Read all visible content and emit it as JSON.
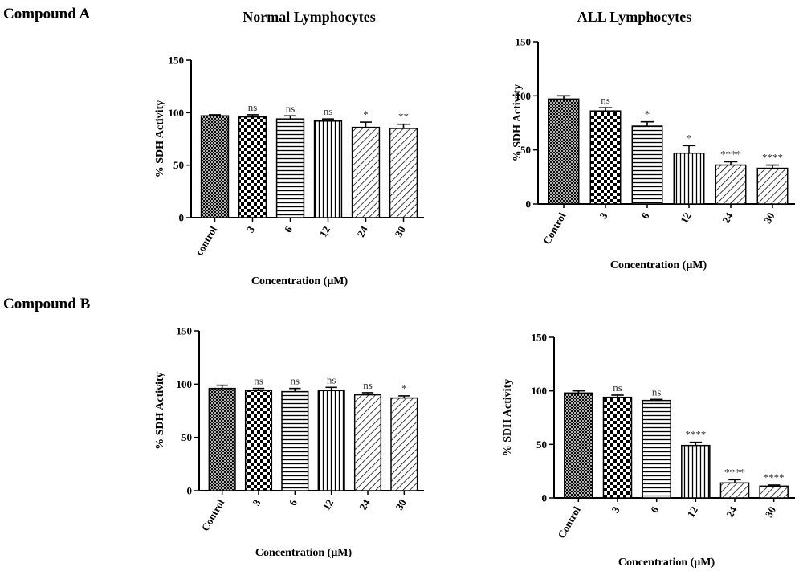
{
  "headings": {
    "compound_a": "Compound A",
    "compound_b": "Compound B"
  },
  "colors": {
    "ink": "#000000",
    "background": "#ffffff"
  },
  "chart_data": [
    {
      "type": "bar",
      "title": "Normal Lymphocytes",
      "group": "Compound A",
      "xlabel": "Concentration (μM)",
      "ylabel": "% SDH Activity",
      "ylim": [
        0,
        150
      ],
      "yticks": [
        0,
        50,
        100,
        150
      ],
      "categories": [
        "control",
        "3",
        "6",
        "12",
        "24",
        "30"
      ],
      "values": [
        97,
        96,
        94,
        92,
        86,
        85
      ],
      "errors": [
        1,
        2,
        3,
        2,
        5,
        4
      ],
      "significance": [
        "",
        "ns",
        "ns",
        "ns",
        "*",
        "**"
      ],
      "patterns": [
        "crosshatch",
        "checker",
        "horizontal",
        "vertical",
        "diagonal",
        "diagonal"
      ]
    },
    {
      "type": "bar",
      "title": "ALL Lymphocytes",
      "group": "Compound A",
      "xlabel": "Concentration (μM)",
      "ylabel": "% SDH Activity",
      "ylim": [
        0,
        150
      ],
      "yticks": [
        0,
        50,
        100,
        150
      ],
      "categories": [
        "Control",
        "3",
        "6",
        "12",
        "24",
        "30"
      ],
      "values": [
        97,
        86,
        72,
        47,
        36,
        33
      ],
      "errors": [
        3,
        3,
        4,
        7,
        3,
        3
      ],
      "significance": [
        "",
        "ns",
        "*",
        "*",
        "****",
        "****"
      ],
      "patterns": [
        "crosshatch",
        "checker",
        "horizontal",
        "vertical",
        "diagonal",
        "diagonal"
      ]
    },
    {
      "type": "bar",
      "title": "",
      "group": "Compound B",
      "xlabel": "Concentration (μM)",
      "ylabel": "% SDH Activity",
      "ylim": [
        0,
        150
      ],
      "yticks": [
        0,
        50,
        100,
        150
      ],
      "categories": [
        "Control",
        "3",
        "6",
        "12",
        "24",
        "30"
      ],
      "values": [
        96,
        94,
        93,
        94,
        90,
        87
      ],
      "errors": [
        3,
        2,
        3,
        3,
        2,
        2
      ],
      "significance": [
        "",
        "ns",
        "ns",
        "ns",
        "ns",
        "*"
      ],
      "patterns": [
        "crosshatch",
        "checker",
        "horizontal",
        "vertical",
        "diagonal",
        "diagonal"
      ]
    },
    {
      "type": "bar",
      "title": "",
      "group": "Compound B",
      "xlabel": "Concentration (μM)",
      "ylabel": "% SDH Activity",
      "ylim": [
        0,
        150
      ],
      "yticks": [
        0,
        50,
        100,
        150
      ],
      "categories": [
        "Control",
        "3",
        "6",
        "12",
        "24",
        "30"
      ],
      "values": [
        98,
        94,
        91,
        49,
        14,
        11
      ],
      "errors": [
        2,
        2,
        1,
        3,
        3,
        1
      ],
      "significance": [
        "",
        "ns",
        "ns",
        "****",
        "****",
        "****"
      ],
      "patterns": [
        "crosshatch",
        "checker",
        "horizontal",
        "vertical",
        "diagonal",
        "diagonal"
      ]
    }
  ]
}
